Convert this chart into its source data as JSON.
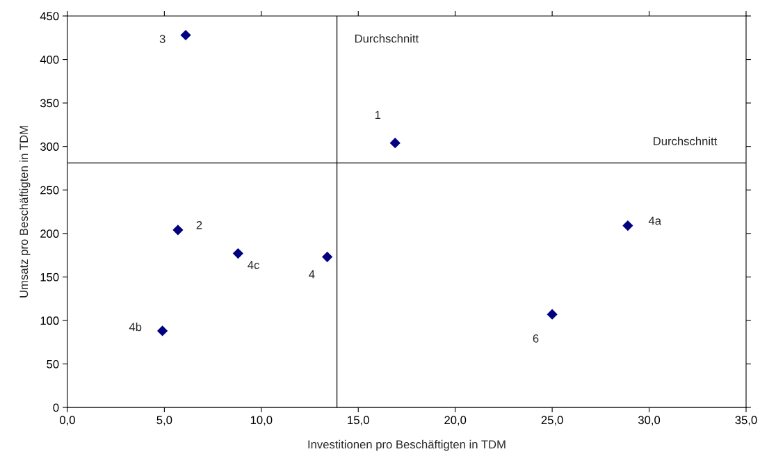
{
  "chart_data": {
    "type": "scatter",
    "xlabel": "Investitionen pro Beschäftigten in TDM",
    "ylabel": "Umsatz pro Beschäftigten in TDM",
    "x": [
      16.9,
      5.7,
      6.1,
      13.4,
      28.9,
      4.9,
      8.8,
      25.0
    ],
    "series": [
      {
        "color": "#000080",
        "values": [
          304,
          204,
          428,
          173,
          209,
          88,
          177,
          107
        ]
      }
    ],
    "marker": "diamond",
    "xlim": [
      0,
      35
    ],
    "ylim": [
      0,
      450
    ],
    "xticks": [
      {
        "value": 0,
        "label": "0,0"
      },
      {
        "value": 5,
        "label": "5,0"
      },
      {
        "value": 10,
        "label": "10,0"
      },
      {
        "value": 15,
        "label": "15,0"
      },
      {
        "value": 20,
        "label": "20,0"
      },
      {
        "value": 25,
        "label": "25,0"
      },
      {
        "value": 30,
        "label": "30,0"
      },
      {
        "value": 35,
        "label": "35,0"
      }
    ],
    "yticks": [
      0,
      50,
      100,
      150,
      200,
      250,
      300,
      350,
      400,
      450
    ],
    "ref_lines": [
      {
        "axis": "x",
        "value": 13.9,
        "label": "Durchschnitt",
        "color": "#000000"
      },
      {
        "axis": "y",
        "value": 281,
        "label": "Durchschnitt",
        "color": "#000000"
      }
    ],
    "annotations": [
      {
        "text": "1",
        "x": 16.9,
        "y": 304
      },
      {
        "text": "2",
        "x": 5.7,
        "y": 204
      },
      {
        "text": "3",
        "x": 6.1,
        "y": 428
      },
      {
        "text": "4",
        "x": 13.4,
        "y": 173
      },
      {
        "text": "4a",
        "x": 28.9,
        "y": 209
      },
      {
        "text": "4b",
        "x": 4.9,
        "y": 88
      },
      {
        "text": "4c",
        "x": 8.8,
        "y": 177
      },
      {
        "text": "6",
        "x": 25.0,
        "y": 107
      }
    ],
    "grid": false,
    "legend": false
  }
}
